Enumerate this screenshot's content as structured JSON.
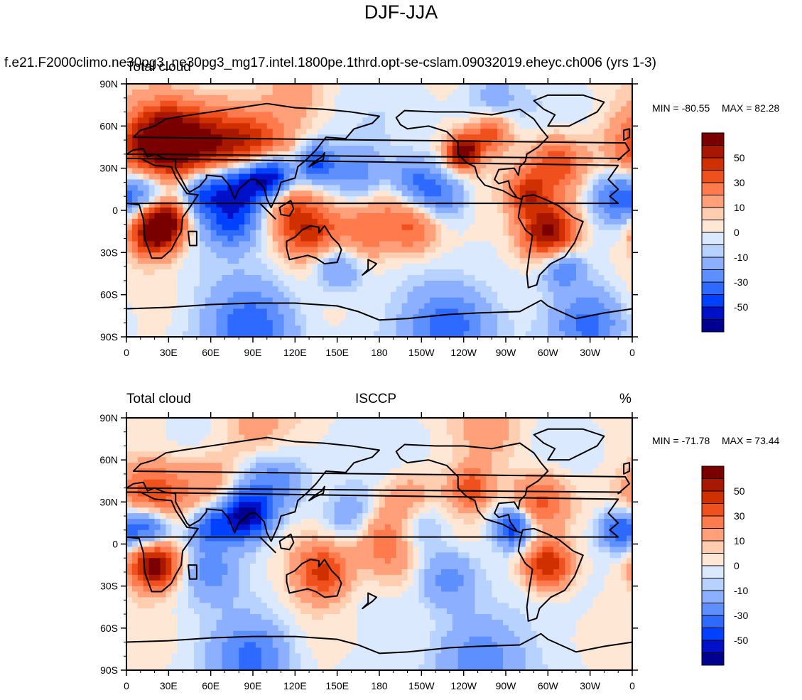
{
  "page": {
    "title": "DJF-JJA",
    "case_title": "f.e21.F2000climo.ne30pg3_ne30pg3_mg17.intel.1800pe.1thrd.opt-se-cslam.09032019.eheyc.ch006 (yrs 1-3)"
  },
  "chart_data": [
    {
      "type": "heatmap",
      "panel": "model",
      "left_title": "Total cloud",
      "center_title": "",
      "right_title": "",
      "min_label": "MIN = -80.55",
      "max_label": "MAX =  82.28",
      "x_tick_labels": [
        "0",
        "30E",
        "60E",
        "90E",
        "120E",
        "150E",
        "180",
        "150W",
        "120W",
        "90W",
        "60W",
        "30W",
        "0"
      ],
      "y_tick_labels": [
        "90N",
        "60N",
        "30N",
        "0",
        "30S",
        "60S",
        "90S"
      ],
      "xlim": [
        0,
        360
      ],
      "ylim": [
        -90,
        90
      ],
      "colorbar_labels": [
        "50",
        "30",
        "10",
        "0",
        "-10",
        "-30",
        "-50"
      ],
      "blobs": [
        {
          "lon": 20,
          "lat": 40,
          "r": 22,
          "v": 55
        },
        {
          "lon": 60,
          "lat": 45,
          "r": 20,
          "v": 50
        },
        {
          "lon": 90,
          "lat": 45,
          "r": 18,
          "v": 40
        },
        {
          "lon": 30,
          "lat": 55,
          "r": 16,
          "v": 35
        },
        {
          "lon": 20,
          "lat": -15,
          "r": 12,
          "v": 75
        },
        {
          "lon": 30,
          "lat": -5,
          "r": 10,
          "v": 45
        },
        {
          "lon": 130,
          "lat": -15,
          "r": 14,
          "v": 45
        },
        {
          "lon": 170,
          "lat": -15,
          "r": 16,
          "v": 30
        },
        {
          "lon": 205,
          "lat": -15,
          "r": 12,
          "v": 25
        },
        {
          "lon": 300,
          "lat": -15,
          "r": 14,
          "v": 70
        },
        {
          "lon": 240,
          "lat": 42,
          "r": 8,
          "v": 70
        },
        {
          "lon": 305,
          "lat": 32,
          "r": 14,
          "v": 40
        },
        {
          "lon": 285,
          "lat": 12,
          "r": 10,
          "v": 40
        },
        {
          "lon": 260,
          "lat": 55,
          "r": 10,
          "v": 35
        },
        {
          "lon": 195,
          "lat": 5,
          "r": 16,
          "v": 15
        },
        {
          "lon": 115,
          "lat": 2,
          "r": 12,
          "v": 20
        },
        {
          "lon": 15,
          "lat": 15,
          "r": 14,
          "v": -45
        },
        {
          "lon": 55,
          "lat": 15,
          "r": 14,
          "v": -55
        },
        {
          "lon": 85,
          "lat": 20,
          "r": 14,
          "v": -70
        },
        {
          "lon": 105,
          "lat": 25,
          "r": 10,
          "v": -55
        },
        {
          "lon": 135,
          "lat": 33,
          "r": 10,
          "v": -45
        },
        {
          "lon": 165,
          "lat": 25,
          "r": 14,
          "v": -25
        },
        {
          "lon": 205,
          "lat": 20,
          "r": 12,
          "v": -35
        },
        {
          "lon": 225,
          "lat": 10,
          "r": 12,
          "v": -30
        },
        {
          "lon": 350,
          "lat": 10,
          "r": 14,
          "v": -40
        },
        {
          "lon": 75,
          "lat": -10,
          "r": 12,
          "v": -35
        },
        {
          "lon": 150,
          "lat": -40,
          "r": 12,
          "v": -25
        },
        {
          "lon": 310,
          "lat": -40,
          "r": 10,
          "v": -30
        },
        {
          "lon": 90,
          "lat": -82,
          "r": 22,
          "v": -40
        },
        {
          "lon": 230,
          "lat": -82,
          "r": 22,
          "v": -40
        },
        {
          "lon": 330,
          "lat": -80,
          "r": 18,
          "v": -35
        },
        {
          "lon": 260,
          "lat": 80,
          "r": 14,
          "v": -15
        },
        {
          "lon": 120,
          "lat": 80,
          "r": 14,
          "v": 12
        }
      ]
    },
    {
      "type": "heatmap",
      "panel": "observation",
      "left_title": "Total cloud",
      "center_title": "ISCCP",
      "right_title": "%",
      "min_label": "MIN = -71.78",
      "max_label": "MAX =  73.44",
      "x_tick_labels": [
        "0",
        "30E",
        "60E",
        "90E",
        "120E",
        "150E",
        "180",
        "150W",
        "120W",
        "90W",
        "60W",
        "30W",
        "0"
      ],
      "y_tick_labels": [
        "90N",
        "60N",
        "30N",
        "0",
        "30S",
        "60S",
        "90S"
      ],
      "xlim": [
        0,
        360
      ],
      "ylim": [
        -90,
        90
      ],
      "colorbar_labels": [
        "50",
        "30",
        "10",
        "0",
        "-10",
        "-30",
        "-50"
      ],
      "blobs": [
        {
          "lon": 20,
          "lat": 35,
          "r": 16,
          "v": 40
        },
        {
          "lon": 60,
          "lat": 45,
          "r": 14,
          "v": 20
        },
        {
          "lon": 20,
          "lat": -15,
          "r": 12,
          "v": 70
        },
        {
          "lon": 140,
          "lat": -20,
          "r": 14,
          "v": 45
        },
        {
          "lon": 300,
          "lat": -15,
          "r": 12,
          "v": 55
        },
        {
          "lon": 295,
          "lat": 30,
          "r": 14,
          "v": 35
        },
        {
          "lon": 245,
          "lat": 40,
          "r": 10,
          "v": 35
        },
        {
          "lon": 200,
          "lat": 30,
          "r": 14,
          "v": 20
        },
        {
          "lon": 180,
          "lat": 5,
          "r": 14,
          "v": 25
        },
        {
          "lon": 260,
          "lat": 80,
          "r": 18,
          "v": 15
        },
        {
          "lon": 90,
          "lat": 80,
          "r": 18,
          "v": 15
        },
        {
          "lon": 190,
          "lat": -15,
          "r": 14,
          "v": 15
        },
        {
          "lon": 15,
          "lat": 12,
          "r": 12,
          "v": -50
        },
        {
          "lon": 85,
          "lat": 20,
          "r": 12,
          "v": -65
        },
        {
          "lon": 105,
          "lat": 42,
          "r": 16,
          "v": -30
        },
        {
          "lon": 60,
          "lat": 12,
          "r": 10,
          "v": -35
        },
        {
          "lon": 275,
          "lat": 12,
          "r": 10,
          "v": -50
        },
        {
          "lon": 350,
          "lat": 10,
          "r": 10,
          "v": -40
        },
        {
          "lon": 160,
          "lat": 20,
          "r": 14,
          "v": -20
        },
        {
          "lon": 210,
          "lat": 15,
          "r": 12,
          "v": -20
        },
        {
          "lon": 230,
          "lat": -25,
          "r": 14,
          "v": -25
        },
        {
          "lon": 60,
          "lat": -20,
          "r": 14,
          "v": -20
        },
        {
          "lon": 90,
          "lat": -80,
          "r": 20,
          "v": -35
        },
        {
          "lon": 250,
          "lat": -80,
          "r": 22,
          "v": -30
        }
      ]
    }
  ],
  "colors": {
    "levels": [
      -60,
      -50,
      -40,
      -30,
      -20,
      -10,
      -5,
      0,
      5,
      10,
      20,
      30,
      40,
      50,
      60
    ],
    "palette": [
      "#000090",
      "#0010c8",
      "#0040ff",
      "#2e6aff",
      "#5d8fff",
      "#8cb0ff",
      "#b7d2ff",
      "#dbe9ff",
      "#ffe7d6",
      "#ffcdb0",
      "#ffa07a",
      "#ff7a4d",
      "#f0501e",
      "#d03000",
      "#a81800",
      "#7a0000"
    ]
  }
}
